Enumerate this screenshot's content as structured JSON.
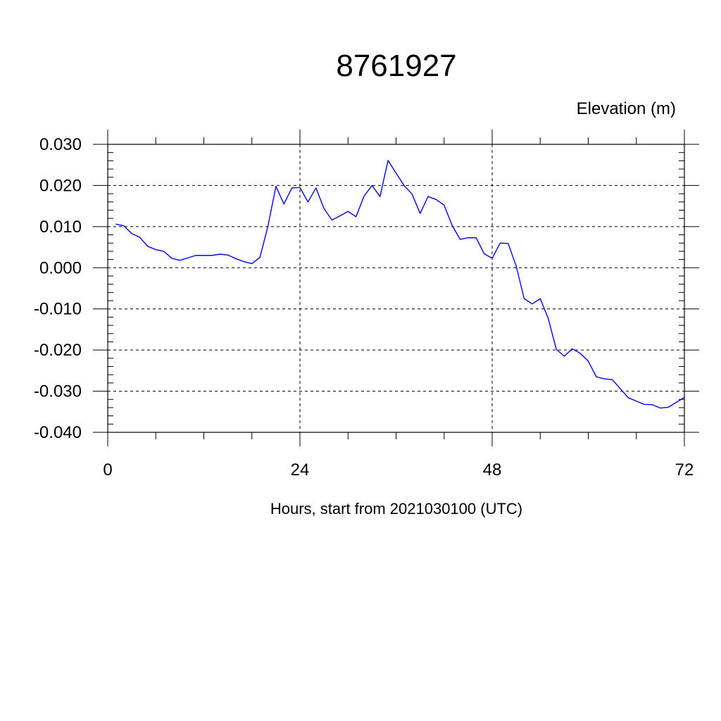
{
  "chart_data": {
    "type": "line",
    "title": "8761927",
    "ylabel": "Elevation (m)",
    "xlabel": "Hours, start from 2021030100 (UTC)",
    "xlim": [
      0,
      72
    ],
    "ylim": [
      -0.04,
      0.03
    ],
    "xticks": [
      0,
      24,
      48,
      72
    ],
    "xtick_labels": [
      "0",
      "24",
      "48",
      "72"
    ],
    "yticks": [
      0.03,
      0.02,
      0.01,
      0.0,
      -0.01,
      -0.02,
      -0.03,
      -0.04
    ],
    "ytick_labels": [
      "0.030",
      "0.020",
      "0.010",
      "0.000",
      "-0.010",
      "-0.020",
      "-0.030",
      "-0.040"
    ],
    "grid": true,
    "line_color": "#0000ff",
    "series": [
      {
        "x": [
          1,
          2,
          3,
          4,
          5,
          6,
          7,
          8,
          9,
          10,
          11,
          12,
          13,
          14,
          15,
          16,
          17,
          18,
          19,
          20,
          21,
          22,
          23,
          24,
          25,
          26,
          27,
          28,
          29,
          30,
          31,
          32,
          33,
          34,
          35,
          36,
          37,
          38,
          39,
          40,
          41,
          42,
          43,
          44,
          45,
          46,
          47,
          48,
          49,
          50,
          51,
          52,
          53,
          54,
          55,
          56,
          57,
          58,
          59,
          60,
          61,
          62,
          63,
          64,
          65,
          66,
          67,
          68,
          69,
          70,
          71,
          72
        ],
        "values": [
          0.0106,
          0.0102,
          0.0083,
          0.0074,
          0.0052,
          0.0044,
          0.004,
          0.0023,
          0.0018,
          0.0024,
          0.003,
          0.003,
          0.003,
          0.0033,
          0.0031,
          0.0022,
          0.0015,
          0.001,
          0.0025,
          0.0101,
          0.0198,
          0.0155,
          0.0194,
          0.0195,
          0.016,
          0.0194,
          0.0144,
          0.0116,
          0.0126,
          0.0137,
          0.0124,
          0.0174,
          0.02,
          0.0173,
          0.0261,
          0.023,
          0.02,
          0.0179,
          0.0132,
          0.0173,
          0.0166,
          0.0152,
          0.0103,
          0.0069,
          0.0073,
          0.0073,
          0.0034,
          0.0023,
          0.006,
          0.0059,
          0.0004,
          -0.0075,
          -0.0088,
          -0.0075,
          -0.0123,
          -0.0198,
          -0.0215,
          -0.0197,
          -0.0208,
          -0.0227,
          -0.0265,
          -0.027,
          -0.0272,
          -0.0294,
          -0.0316,
          -0.0324,
          -0.0332,
          -0.0333,
          -0.0341,
          -0.0339,
          -0.0327,
          -0.0315
        ]
      }
    ]
  }
}
